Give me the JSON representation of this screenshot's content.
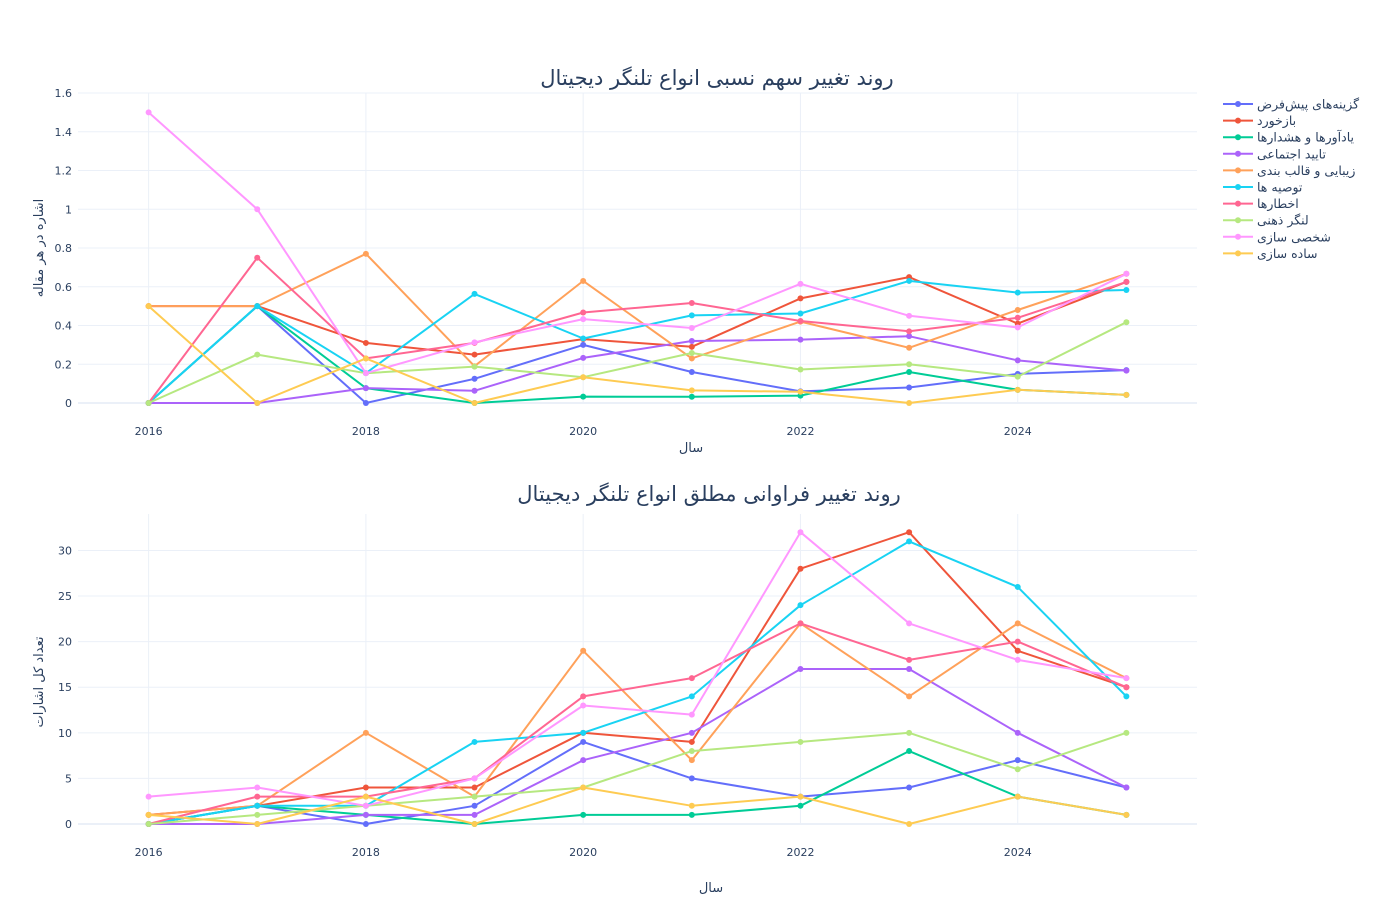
{
  "chart_data": [
    {
      "type": "line",
      "title": "روند تغییر سهم نسبی انواع تلنگر دیجیتال",
      "xlabel": "سال",
      "ylabel": "اشاره در هر مقاله",
      "x": [
        2016,
        2017,
        2018,
        2019,
        2020,
        2021,
        2022,
        2023,
        2024,
        2025
      ],
      "xticks": [
        2016,
        2018,
        2020,
        2022,
        2024
      ],
      "xtick_labels": [
        "2016",
        "2018",
        "2020",
        "2022",
        "2024"
      ],
      "ylim": [
        0,
        1.6
      ],
      "yticks": [
        0,
        0.2,
        0.4,
        0.6,
        0.8,
        1,
        1.2,
        1.4,
        1.6
      ],
      "ytick_labels": [
        "0",
        "0.2",
        "0.4",
        "0.6",
        "0.8",
        "1",
        "1.2",
        "1.4",
        "1.6"
      ],
      "series": [
        {
          "name": "گزینه‌های پیش‌فرض",
          "color": "#636efa",
          "values": [
            0,
            0.5,
            0,
            0.125,
            0.3,
            0.16,
            0.06,
            0.08,
            0.15,
            0.17
          ]
        },
        {
          "name": "بازخورد",
          "color": "#ef553b",
          "values": [
            0.5,
            0.5,
            0.31,
            0.25,
            0.33,
            0.29,
            0.54,
            0.65,
            0.41,
            0.625
          ]
        },
        {
          "name": "یادآورها و هشدارها",
          "color": "#00cc96",
          "values": [
            0,
            0.5,
            0.077,
            0,
            0.033,
            0.032,
            0.038,
            0.16,
            0.068,
            0.042
          ]
        },
        {
          "name": "تایید اجتماعی",
          "color": "#ab63fa",
          "values": [
            0,
            0,
            0.077,
            0.063,
            0.233,
            0.32,
            0.327,
            0.345,
            0.22,
            0.167
          ]
        },
        {
          "name": "زیبایی و قالب بندی",
          "color": "#ffa15a",
          "values": [
            0.5,
            0.5,
            0.77,
            0.19,
            0.63,
            0.23,
            0.42,
            0.285,
            0.48,
            0.667
          ]
        },
        {
          "name": "توصیه ها",
          "color": "#19d3f3",
          "values": [
            0,
            0.5,
            0.154,
            0.563,
            0.333,
            0.452,
            0.462,
            0.63,
            0.57,
            0.583
          ]
        },
        {
          "name": "اخطارها",
          "color": "#ff6692",
          "values": [
            0,
            0.75,
            0.23,
            0.31,
            0.467,
            0.516,
            0.423,
            0.37,
            0.44,
            0.625
          ]
        },
        {
          "name": "لنگر ذهنی",
          "color": "#b6e880",
          "values": [
            0,
            0.25,
            0.154,
            0.188,
            0.133,
            0.258,
            0.173,
            0.2,
            0.136,
            0.417
          ]
        },
        {
          "name": "شخصی سازی",
          "color": "#ff97ff",
          "values": [
            1.5,
            1.0,
            0.154,
            0.313,
            0.433,
            0.387,
            0.615,
            0.45,
            0.39,
            0.667
          ]
        },
        {
          "name": "ساده سازی",
          "color": "#fecb52",
          "values": [
            0.5,
            0,
            0.23,
            0,
            0.133,
            0.065,
            0.058,
            0,
            0.068,
            0.042
          ]
        }
      ]
    },
    {
      "type": "line",
      "title": "روند تغییر فراوانی مطلق انواع تلنگر دیجیتال",
      "xlabel": "سال",
      "ylabel": "تعداد کل اشارات",
      "x": [
        2016,
        2017,
        2018,
        2019,
        2020,
        2021,
        2022,
        2023,
        2024,
        2025
      ],
      "xticks": [
        2016,
        2018,
        2020,
        2022,
        2024
      ],
      "xtick_labels": [
        "2016",
        "2018",
        "2020",
        "2022",
        "2024"
      ],
      "ylim": [
        0,
        34
      ],
      "yticks": [
        0,
        5,
        10,
        15,
        20,
        25,
        30
      ],
      "ytick_labels": [
        "0",
        "5",
        "10",
        "15",
        "20",
        "25",
        "30"
      ],
      "series": [
        {
          "name": "گزینه‌های پیش‌فرض",
          "color": "#636efa",
          "values": [
            0,
            2,
            0,
            2,
            9,
            5,
            3,
            4,
            7,
            4
          ]
        },
        {
          "name": "بازخورد",
          "color": "#ef553b",
          "values": [
            1,
            2,
            4,
            4,
            10,
            9,
            28,
            32,
            19,
            15
          ]
        },
        {
          "name": "یادآورها و هشدارها",
          "color": "#00cc96",
          "values": [
            0,
            2,
            1,
            0,
            1,
            1,
            2,
            8,
            3,
            1
          ]
        },
        {
          "name": "تایید اجتماعی",
          "color": "#ab63fa",
          "values": [
            0,
            0,
            1,
            1,
            7,
            10,
            17,
            17,
            10,
            4
          ]
        },
        {
          "name": "زیبایی و قالب بندی",
          "color": "#ffa15a",
          "values": [
            1,
            2,
            10,
            3,
            19,
            7,
            22,
            14,
            22,
            16
          ]
        },
        {
          "name": "توصیه ها",
          "color": "#19d3f3",
          "values": [
            0,
            2,
            2,
            9,
            10,
            14,
            24,
            31,
            26,
            14
          ]
        },
        {
          "name": "اخطارها",
          "color": "#ff6692",
          "values": [
            0,
            3,
            3,
            5,
            14,
            16,
            22,
            18,
            20,
            15
          ]
        },
        {
          "name": "لنگر ذهنی",
          "color": "#b6e880",
          "values": [
            0,
            1,
            2,
            3,
            4,
            8,
            9,
            10,
            6,
            10
          ]
        },
        {
          "name": "شخصی سازی",
          "color": "#ff97ff",
          "values": [
            3,
            4,
            2,
            5,
            13,
            12,
            32,
            22,
            18,
            16
          ]
        },
        {
          "name": "ساده سازی",
          "color": "#fecb52",
          "values": [
            1,
            0,
            3,
            0,
            4,
            2,
            3,
            0,
            3,
            1
          ]
        }
      ]
    }
  ]
}
